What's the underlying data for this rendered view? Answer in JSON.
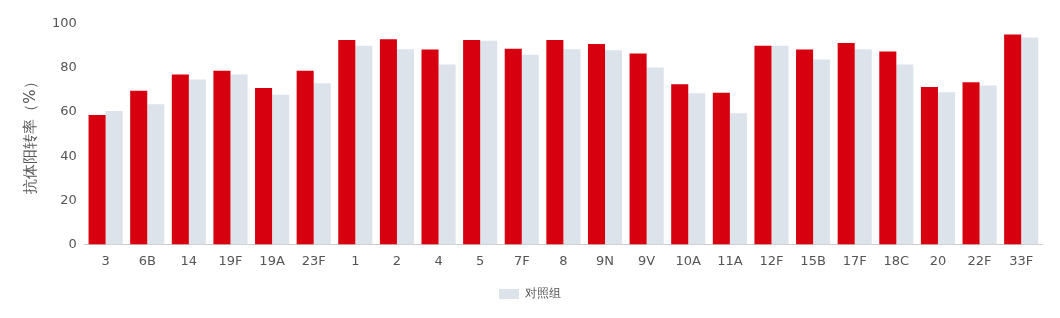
{
  "chart_data": {
    "type": "bar",
    "ylabel": "抗体阳转率（%）",
    "categories": [
      "3",
      "6B",
      "14",
      "19F",
      "19A",
      "23F",
      "1",
      "2",
      "4",
      "5",
      "7F",
      "8",
      "9N",
      "9V",
      "10A",
      "11A",
      "12F",
      "15B",
      "17F",
      "18C",
      "20",
      "22F",
      "33F"
    ],
    "series": [
      {
        "color": "#d7000f",
        "values": [
          58.7,
          69.6,
          77,
          78.7,
          70.9,
          78.7,
          92.6,
          93,
          88.3,
          92.6,
          88.7,
          92.6,
          90.9,
          86.5,
          72.6,
          68.7,
          90,
          88.3,
          91.3,
          87.4,
          71.3,
          73.5,
          95.2
        ]
      },
      {
        "name": "对照组",
        "color": "#dce3eb",
        "values": [
          60.5,
          63.5,
          74.8,
          77,
          67.8,
          73,
          90,
          88.5,
          81.5,
          92.3,
          86,
          88.5,
          88,
          80.2,
          68.5,
          59.5,
          90,
          83.8,
          88.5,
          81.6,
          69,
          72,
          93.8
        ]
      }
    ],
    "ylim": [
      0,
      100
    ],
    "yticks": [
      0,
      20,
      40,
      60,
      80,
      100
    ],
    "grid": false,
    "legend": "bottom"
  }
}
